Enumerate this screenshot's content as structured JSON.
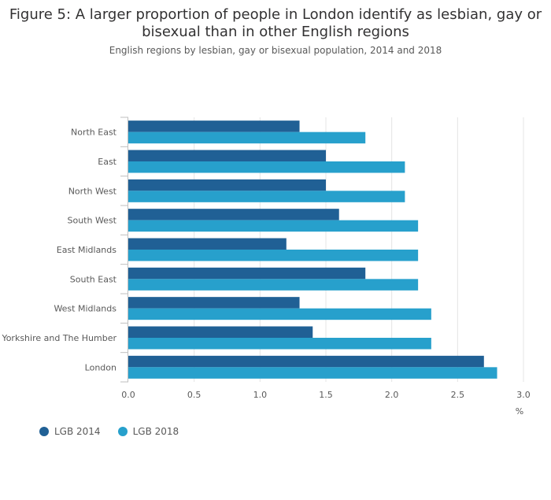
{
  "chart_data": {
    "type": "bar",
    "orientation": "horizontal",
    "title": "Figure 5: A larger proportion of people in London identify as lesbian, gay or bisexual than in other English regions",
    "subtitle": "English regions by lesbian, gay or bisexual population, 2014 and 2018",
    "xlabel": "%",
    "xlim": [
      0,
      3.0
    ],
    "x_ticks": [
      "0.0",
      "0.5",
      "1.0",
      "1.5",
      "2.0",
      "2.5",
      "3.0"
    ],
    "grid": true,
    "legend_position": "bottom-left",
    "categories": [
      "North East",
      "East",
      "North West",
      "South West",
      "East Midlands",
      "South East",
      "West Midlands",
      "Yorkshire and The Humber",
      "London"
    ],
    "series": [
      {
        "name": "LGB 2014",
        "color": "#206095",
        "values": [
          1.3,
          1.5,
          1.5,
          1.6,
          1.2,
          1.8,
          1.3,
          1.4,
          2.7
        ]
      },
      {
        "name": "LGB 2018",
        "color": "#27a0cc",
        "values": [
          1.8,
          2.1,
          2.1,
          2.2,
          2.2,
          2.2,
          2.3,
          2.3,
          2.8
        ]
      }
    ]
  }
}
